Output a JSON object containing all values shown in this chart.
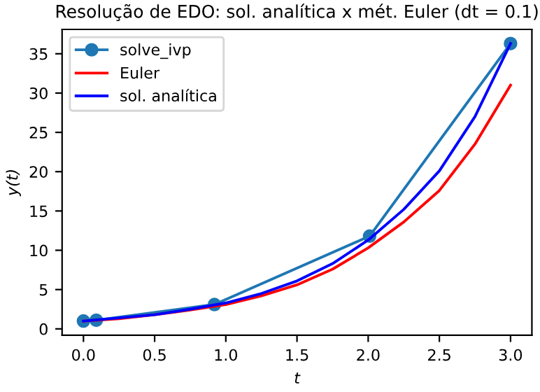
{
  "chart_data": {
    "type": "line",
    "title": "Resolução de EDO: sol. analítica x mét. Euler (dt = 0.1)",
    "xlabel": "t",
    "ylabel": "y(t)",
    "xlim": [
      -0.15,
      3.15
    ],
    "xticks": [
      {
        "value": 0,
        "label": "0.0"
      },
      {
        "value": 0.5,
        "label": "0.5"
      },
      {
        "value": 1,
        "label": "1.0"
      },
      {
        "value": 1.5,
        "label": "1.5"
      },
      {
        "value": 2,
        "label": "2.0"
      },
      {
        "value": 2.5,
        "label": "2.5"
      },
      {
        "value": 3,
        "label": "3.0"
      }
    ],
    "ylim": [
      -0.8,
      38.1
    ],
    "yticks": [
      0,
      5,
      10,
      15,
      20,
      25,
      30,
      35
    ],
    "grid": false,
    "legend": "top left",
    "series": [
      {
        "name": "solve_ivp",
        "color": "#1f77b4",
        "marker": "circle",
        "x": [
          0,
          0.09,
          0.92,
          2.01,
          3
        ],
        "values": [
          1,
          1.1,
          3.1,
          11.8,
          36.3
        ]
      },
      {
        "name": "Euler",
        "color": "#ff0000",
        "marker": "none",
        "x": [
          0,
          0.25,
          0.5,
          0.75,
          1,
          1.25,
          1.5,
          1.75,
          2,
          2.25,
          2.5,
          2.75,
          3
        ],
        "values": [
          1,
          1.3,
          1.8,
          2.4,
          3.1,
          4.2,
          5.6,
          7.6,
          10.3,
          13.6,
          17.6,
          23.5,
          31.0
        ]
      },
      {
        "name": "sol. analítica",
        "color": "#0000ff",
        "marker": "none",
        "x": [
          0,
          0.25,
          0.5,
          0.75,
          1,
          1.25,
          1.5,
          1.75,
          2,
          2.25,
          2.5,
          2.75,
          3
        ],
        "values": [
          1,
          1.4,
          1.8,
          2.5,
          3.3,
          4.5,
          6.1,
          8.3,
          11.3,
          15.2,
          20.1,
          27.0,
          36.3
        ]
      }
    ]
  }
}
